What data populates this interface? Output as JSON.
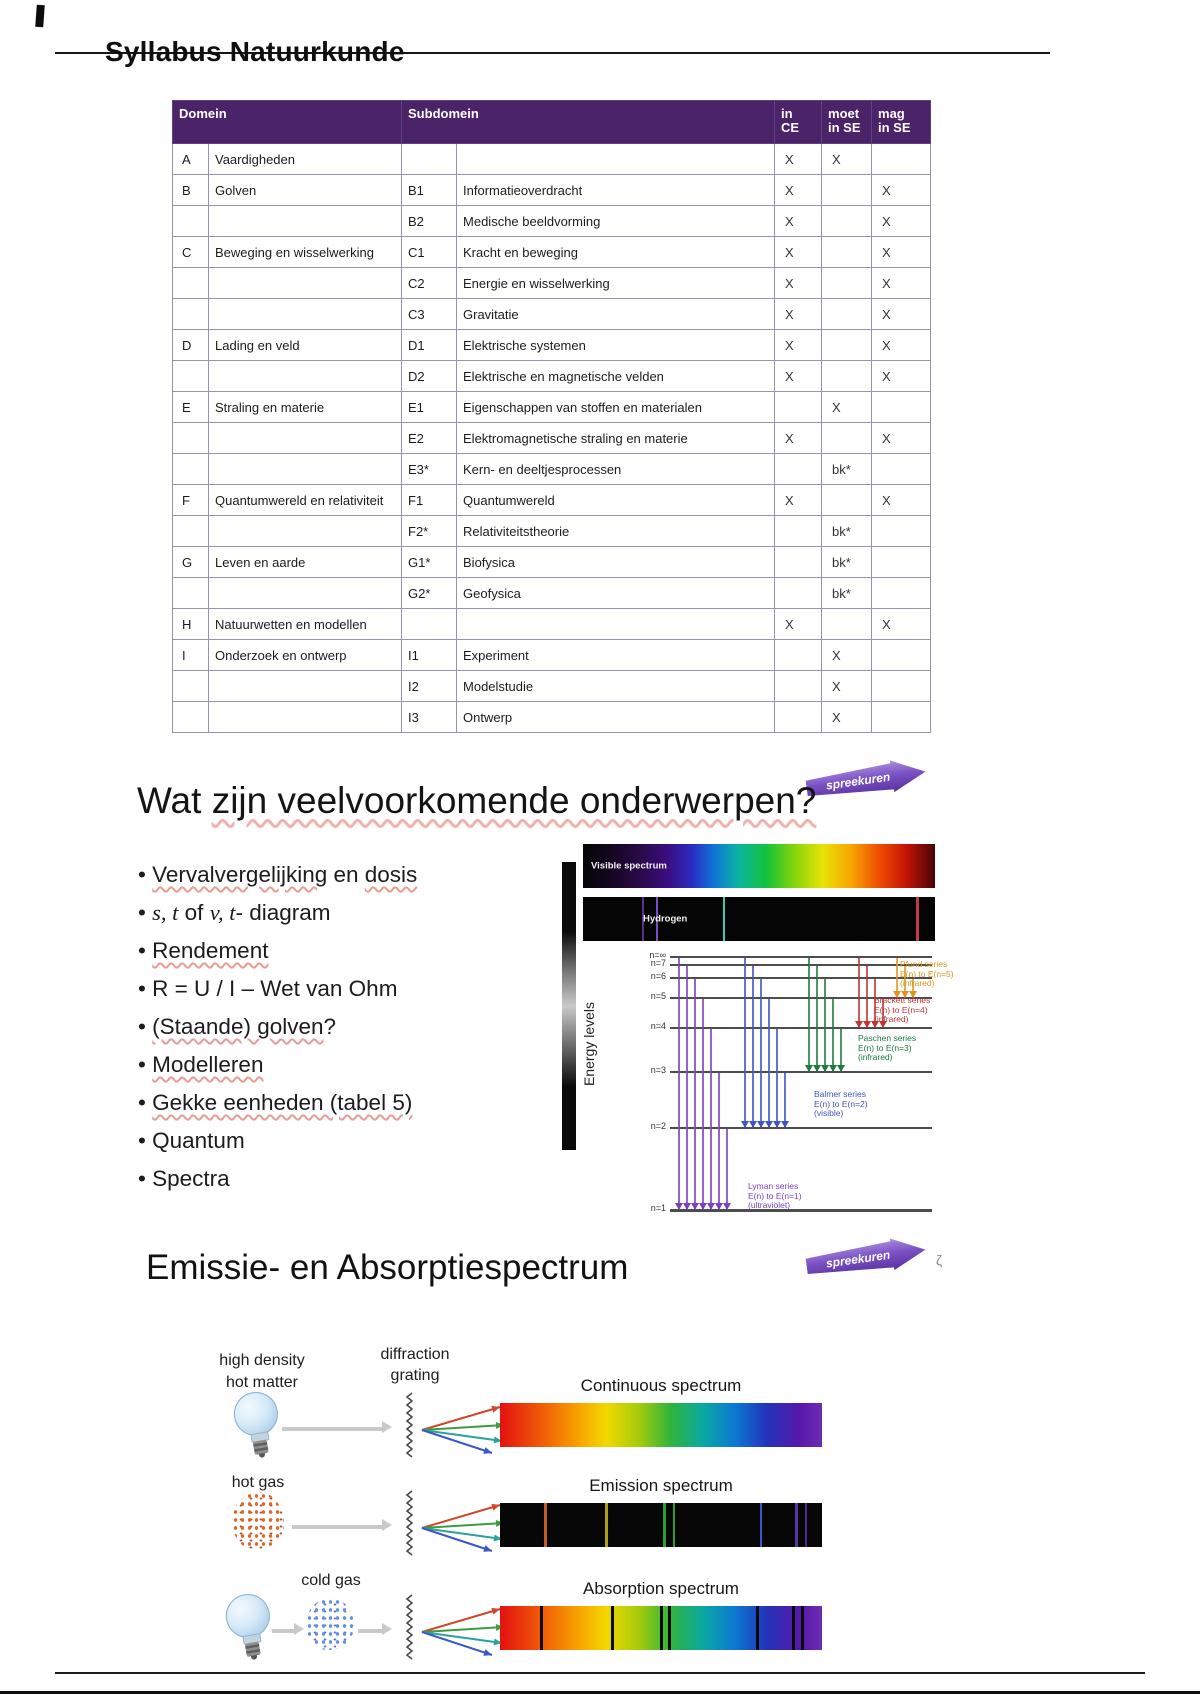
{
  "page": {
    "title": "Syllabus Natuurkunde"
  },
  "syllabus_table": {
    "headers": {
      "domein": "Domein",
      "subdomein": "Subdomein",
      "in_ce": "in\nCE",
      "moet_in_se": "moet\nin SE",
      "mag_in_se": "mag\nin SE"
    },
    "rows": [
      {
        "letter": "A",
        "domain": "Vaardigheden",
        "code": "",
        "name": "",
        "ce": "X",
        "moet": "X",
        "mag": ""
      },
      {
        "letter": "B",
        "domain": "Golven",
        "code": "B1",
        "name": "Informatieoverdracht",
        "ce": "X",
        "moet": "",
        "mag": "X"
      },
      {
        "letter": "",
        "domain": "",
        "code": "B2",
        "name": "Medische beeldvorming",
        "ce": "X",
        "moet": "",
        "mag": "X"
      },
      {
        "letter": "C",
        "domain": "Beweging en wisselwerking",
        "code": "C1",
        "name": "Kracht en beweging",
        "ce": "X",
        "moet": "",
        "mag": "X"
      },
      {
        "letter": "",
        "domain": "",
        "code": "C2",
        "name": "Energie en wisselwerking",
        "ce": "X",
        "moet": "",
        "mag": "X"
      },
      {
        "letter": "",
        "domain": "",
        "code": "C3",
        "name": "Gravitatie",
        "ce": "X",
        "moet": "",
        "mag": "X"
      },
      {
        "letter": "D",
        "domain": "Lading en veld",
        "code": "D1",
        "name": "Elektrische systemen",
        "ce": "X",
        "moet": "",
        "mag": "X"
      },
      {
        "letter": "",
        "domain": "",
        "code": "D2",
        "name": "Elektrische en magnetische velden",
        "ce": "X",
        "moet": "",
        "mag": "X"
      },
      {
        "letter": "E",
        "domain": "Straling en materie",
        "code": "E1",
        "name": "Eigenschappen van stoffen en materialen",
        "ce": "",
        "moet": "X",
        "mag": ""
      },
      {
        "letter": "",
        "domain": "",
        "code": "E2",
        "name": "Elektromagnetische straling en materie",
        "ce": "X",
        "moet": "",
        "mag": "X"
      },
      {
        "letter": "",
        "domain": "",
        "code": "E3*",
        "name": "Kern- en deeltjesprocessen",
        "ce": "",
        "moet": "bk*",
        "mag": ""
      },
      {
        "letter": "F",
        "domain": "Quantumwereld en relativiteit",
        "code": "F1",
        "name": "Quantumwereld",
        "ce": "X",
        "moet": "",
        "mag": "X"
      },
      {
        "letter": "",
        "domain": "",
        "code": "F2*",
        "name": "Relativiteitstheorie",
        "ce": "",
        "moet": "bk*",
        "mag": ""
      },
      {
        "letter": "G",
        "domain": "Leven en aarde",
        "code": "G1*",
        "name": "Biofysica",
        "ce": "",
        "moet": "bk*",
        "mag": ""
      },
      {
        "letter": "",
        "domain": "",
        "code": "G2*",
        "name": "Geofysica",
        "ce": "",
        "moet": "bk*",
        "mag": ""
      },
      {
        "letter": "H",
        "domain": "Natuurwetten en modellen",
        "code": "",
        "name": "",
        "ce": "X",
        "moet": "",
        "mag": "X"
      },
      {
        "letter": "I",
        "domain": "Onderzoek en ontwerp",
        "code": "I1",
        "name": "Experiment",
        "ce": "",
        "moet": "X",
        "mag": ""
      },
      {
        "letter": "",
        "domain": "",
        "code": "I2",
        "name": "Modelstudie",
        "ce": "",
        "moet": "X",
        "mag": ""
      },
      {
        "letter": "",
        "domain": "",
        "code": "I3",
        "name": "Ontwerp",
        "ce": "",
        "moet": "X",
        "mag": ""
      }
    ]
  },
  "topics_section": {
    "banner": "spreekuren",
    "heading": [
      {
        "t": "Wat "
      },
      {
        "t": "zijn veelvoorkomende onderwerpen?",
        "u": true
      }
    ],
    "bullets": [
      [
        {
          "t": "Vervalvergelijking",
          "u": true
        },
        {
          "t": " en "
        },
        {
          "t": "dosis",
          "u": true
        }
      ],
      [
        {
          "t": "s, t",
          "i": true
        },
        {
          "t": "  of  "
        },
        {
          "t": "v, t",
          "i": true
        },
        {
          "t": "- diagram"
        }
      ],
      [
        {
          "t": "Rendement",
          "u": true
        }
      ],
      [
        {
          "t": "R = U / I – Wet van Ohm"
        }
      ],
      [
        {
          "t": "(Staande) golven",
          "u": true
        },
        {
          "t": "?"
        }
      ],
      [
        {
          "t": "Modelleren",
          "u": true
        }
      ],
      [
        {
          "t": "Gekke eenheden (tabel 5)",
          "u": true
        }
      ],
      [
        {
          "t": "Quantum"
        }
      ],
      [
        {
          "t": "Spectra"
        }
      ]
    ]
  },
  "energy_figure": {
    "visible_label": "Visible spectrum",
    "hydrogen_label": "Hydrogen",
    "axis_label": "Energy levels",
    "levels": [
      "n=∞",
      "n=7",
      "n=6",
      "n=5",
      "n=4",
      "n=3",
      "n=2",
      "n=1"
    ],
    "hydrogen_lines": [
      {
        "pos": 17,
        "color": "#5b2d91"
      },
      {
        "pos": 21,
        "color": "#7a4ecb"
      },
      {
        "pos": 40,
        "color": "#3fc8b4"
      },
      {
        "pos": 95,
        "color": "#c23a45"
      }
    ],
    "series": [
      {
        "name": "Pfund series",
        "range": "E(n) to E(n=5)",
        "kind": "(infrared)",
        "color": "#e0961e",
        "count": 3
      },
      {
        "name": "Brackett series",
        "range": "E(n) to E(n=4)",
        "kind": "(infrared)",
        "color": "#c43434",
        "count": 4
      },
      {
        "name": "Paschen series",
        "range": "E(n) to E(n=3)",
        "kind": "(infrared)",
        "color": "#1e7a40",
        "count": 5
      },
      {
        "name": "Balmer series",
        "range": "E(n) to E(n=2)",
        "kind": "(visible)",
        "color": "#4253c4",
        "count": 6
      },
      {
        "name": "Lyman series",
        "range": "E(n) to E(n=1)",
        "kind": "(ultraviolet)",
        "color": "#7a3fbf",
        "count": 7
      }
    ]
  },
  "emission_section": {
    "banner": "spreekuren",
    "heading": "Emissie- en Absorptiespectrum",
    "grating_label": "diffraction\ngrating",
    "rows": [
      {
        "source": "high density\nhot matter",
        "spectrum": "Continuous spectrum",
        "type": "continuous"
      },
      {
        "source": "hot gas",
        "spectrum": "Emission spectrum",
        "type": "emission"
      },
      {
        "source": "cold gas",
        "spectrum": "Absorption spectrum",
        "type": "absorption"
      }
    ],
    "emission_lines": [
      {
        "pos": 14,
        "color": "#c06020"
      },
      {
        "pos": 33,
        "color": "#b0a018"
      },
      {
        "pos": 51,
        "color": "#2f9e2f"
      },
      {
        "pos": 54,
        "color": "#2f9e2f"
      },
      {
        "pos": 81,
        "color": "#3a55c8"
      },
      {
        "pos": 92,
        "color": "#5b35a8"
      },
      {
        "pos": 95,
        "color": "#4a2a98"
      }
    ],
    "absorption_line_positions": [
      13,
      35,
      50,
      52.5,
      80,
      91,
      94
    ]
  }
}
